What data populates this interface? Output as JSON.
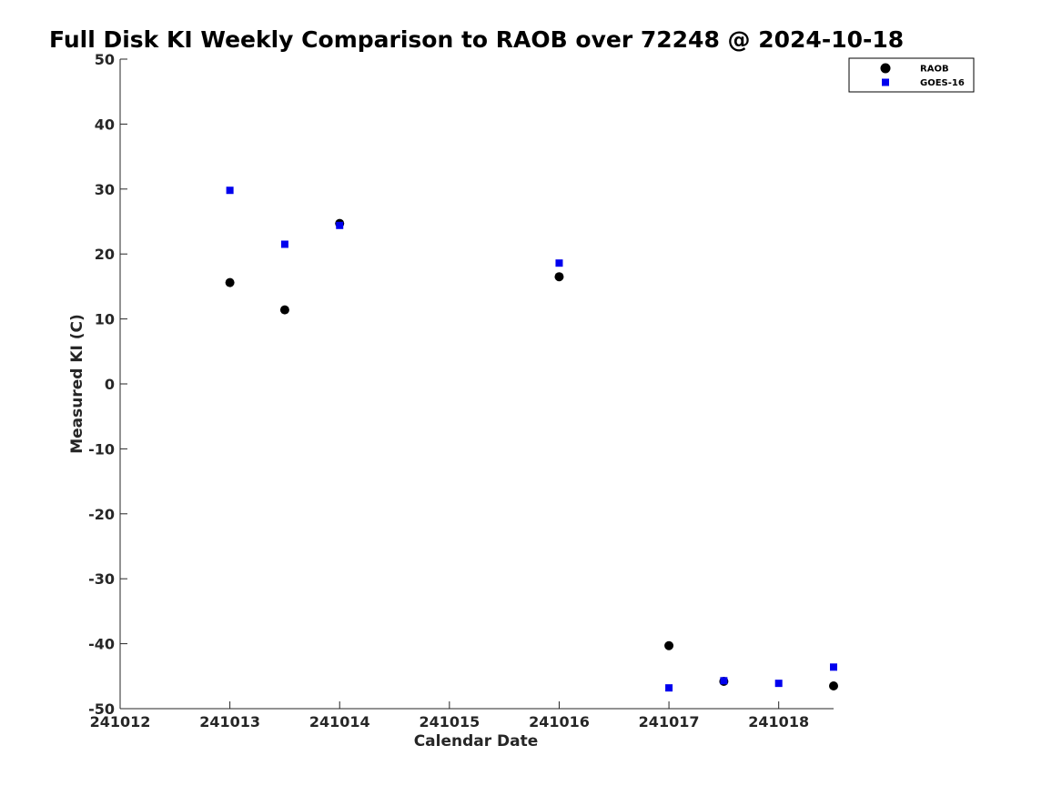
{
  "chart_data": {
    "type": "scatter",
    "title": "Full Disk KI Weekly Comparison to RAOB over 72248 @ 2024-10-18",
    "xlabel": "Calendar Date",
    "ylabel": "Measured KI (C)",
    "xlim": [
      241012,
      241018.5
    ],
    "ylim": [
      -50,
      50
    ],
    "x_ticks": [
      241012,
      241013,
      241014,
      241015,
      241016,
      241017,
      241018
    ],
    "x_tick_labels": [
      "241012",
      "241013",
      "241014",
      "241015",
      "241016",
      "241017",
      "241018"
    ],
    "y_ticks": [
      50,
      40,
      30,
      20,
      10,
      0,
      -10,
      -20,
      -30,
      -40,
      -50
    ],
    "y_tick_labels": [
      "50",
      "40",
      "30",
      "20",
      "10",
      "0",
      "-10",
      "-20",
      "-30",
      "-40",
      "-50"
    ],
    "grid": false,
    "legend_position": "top-right",
    "series": [
      {
        "name": "RAOB",
        "marker": "circle",
        "color": "#000000",
        "x": [
          241013,
          241013.5,
          241014,
          241016,
          241017,
          241017.5,
          241018.5
        ],
        "y": [
          15.6,
          11.4,
          24.7,
          16.5,
          -40.3,
          -45.8,
          -46.5
        ]
      },
      {
        "name": "GOES-16",
        "marker": "square",
        "color": "#0000ee",
        "x": [
          241013,
          241013.5,
          241014,
          241016,
          241017,
          241017.5,
          241018,
          241018.5
        ],
        "y": [
          29.8,
          21.5,
          24.4,
          18.6,
          -46.8,
          -45.7,
          -46.1,
          -43.6
        ]
      }
    ]
  }
}
